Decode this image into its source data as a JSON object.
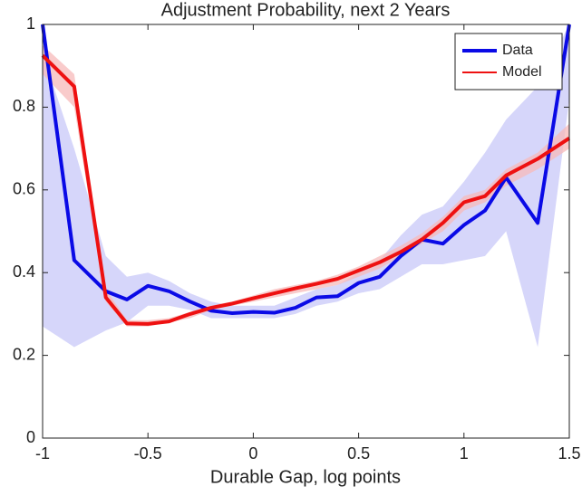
{
  "chart_data": {
    "type": "line",
    "title": "Adjustment Probability, next 2 Years",
    "x_label": "Durable Gap, log points",
    "x": [
      -1,
      -0.85,
      -0.7,
      -0.6,
      -0.5,
      -0.4,
      -0.3,
      -0.2,
      -0.1,
      0,
      0.1,
      0.2,
      0.3,
      0.4,
      0.5,
      0.6,
      0.7,
      0.8,
      0.9,
      1.0,
      1.1,
      1.2,
      1.35,
      1.5
    ],
    "series": [
      {
        "name": "Data",
        "color": "#0a0ae6",
        "band_color": "#c8c8f8",
        "values": [
          1.0,
          0.43,
          0.355,
          0.335,
          0.368,
          0.355,
          0.33,
          0.308,
          0.302,
          0.305,
          0.303,
          0.315,
          0.34,
          0.343,
          0.375,
          0.39,
          0.44,
          0.48,
          0.47,
          0.515,
          0.55,
          0.63,
          0.52,
          1.0
        ],
        "band_lower": [
          0.27,
          0.22,
          0.26,
          0.28,
          0.32,
          0.32,
          0.31,
          0.29,
          0.29,
          0.29,
          0.29,
          0.3,
          0.32,
          0.33,
          0.35,
          0.36,
          0.39,
          0.42,
          0.42,
          0.43,
          0.44,
          0.5,
          0.22,
          0.82
        ],
        "band_upper": [
          0.93,
          0.7,
          0.44,
          0.39,
          0.4,
          0.38,
          0.35,
          0.33,
          0.32,
          0.32,
          0.32,
          0.34,
          0.36,
          0.37,
          0.4,
          0.43,
          0.49,
          0.54,
          0.56,
          0.62,
          0.69,
          0.77,
          0.85,
          1.0
        ]
      },
      {
        "name": "Model",
        "color": "#ee1111",
        "band_color": "#f7baba",
        "values": [
          0.925,
          0.85,
          0.34,
          0.277,
          0.276,
          0.282,
          0.3,
          0.315,
          0.325,
          0.338,
          0.35,
          0.362,
          0.373,
          0.385,
          0.405,
          0.425,
          0.45,
          0.48,
          0.52,
          0.57,
          0.585,
          0.635,
          0.675,
          0.725
        ],
        "band_lower": [
          0.88,
          0.8,
          0.33,
          0.27,
          0.27,
          0.28,
          0.29,
          0.31,
          0.32,
          0.33,
          0.34,
          0.35,
          0.36,
          0.37,
          0.39,
          0.41,
          0.44,
          0.47,
          0.5,
          0.55,
          0.57,
          0.61,
          0.65,
          0.7
        ],
        "band_upper": [
          0.95,
          0.88,
          0.36,
          0.285,
          0.285,
          0.29,
          0.305,
          0.32,
          0.33,
          0.345,
          0.36,
          0.37,
          0.38,
          0.395,
          0.415,
          0.44,
          0.465,
          0.495,
          0.535,
          0.585,
          0.6,
          0.65,
          0.69,
          0.76
        ]
      }
    ],
    "xlim": [
      -1,
      1.5
    ],
    "ylim": [
      0,
      1
    ],
    "xticks": [
      -1,
      -0.5,
      0,
      0.5,
      1,
      1.5
    ],
    "yticks": [
      0,
      0.2,
      0.4,
      0.6,
      0.8,
      1
    ],
    "legend": "upper right"
  }
}
